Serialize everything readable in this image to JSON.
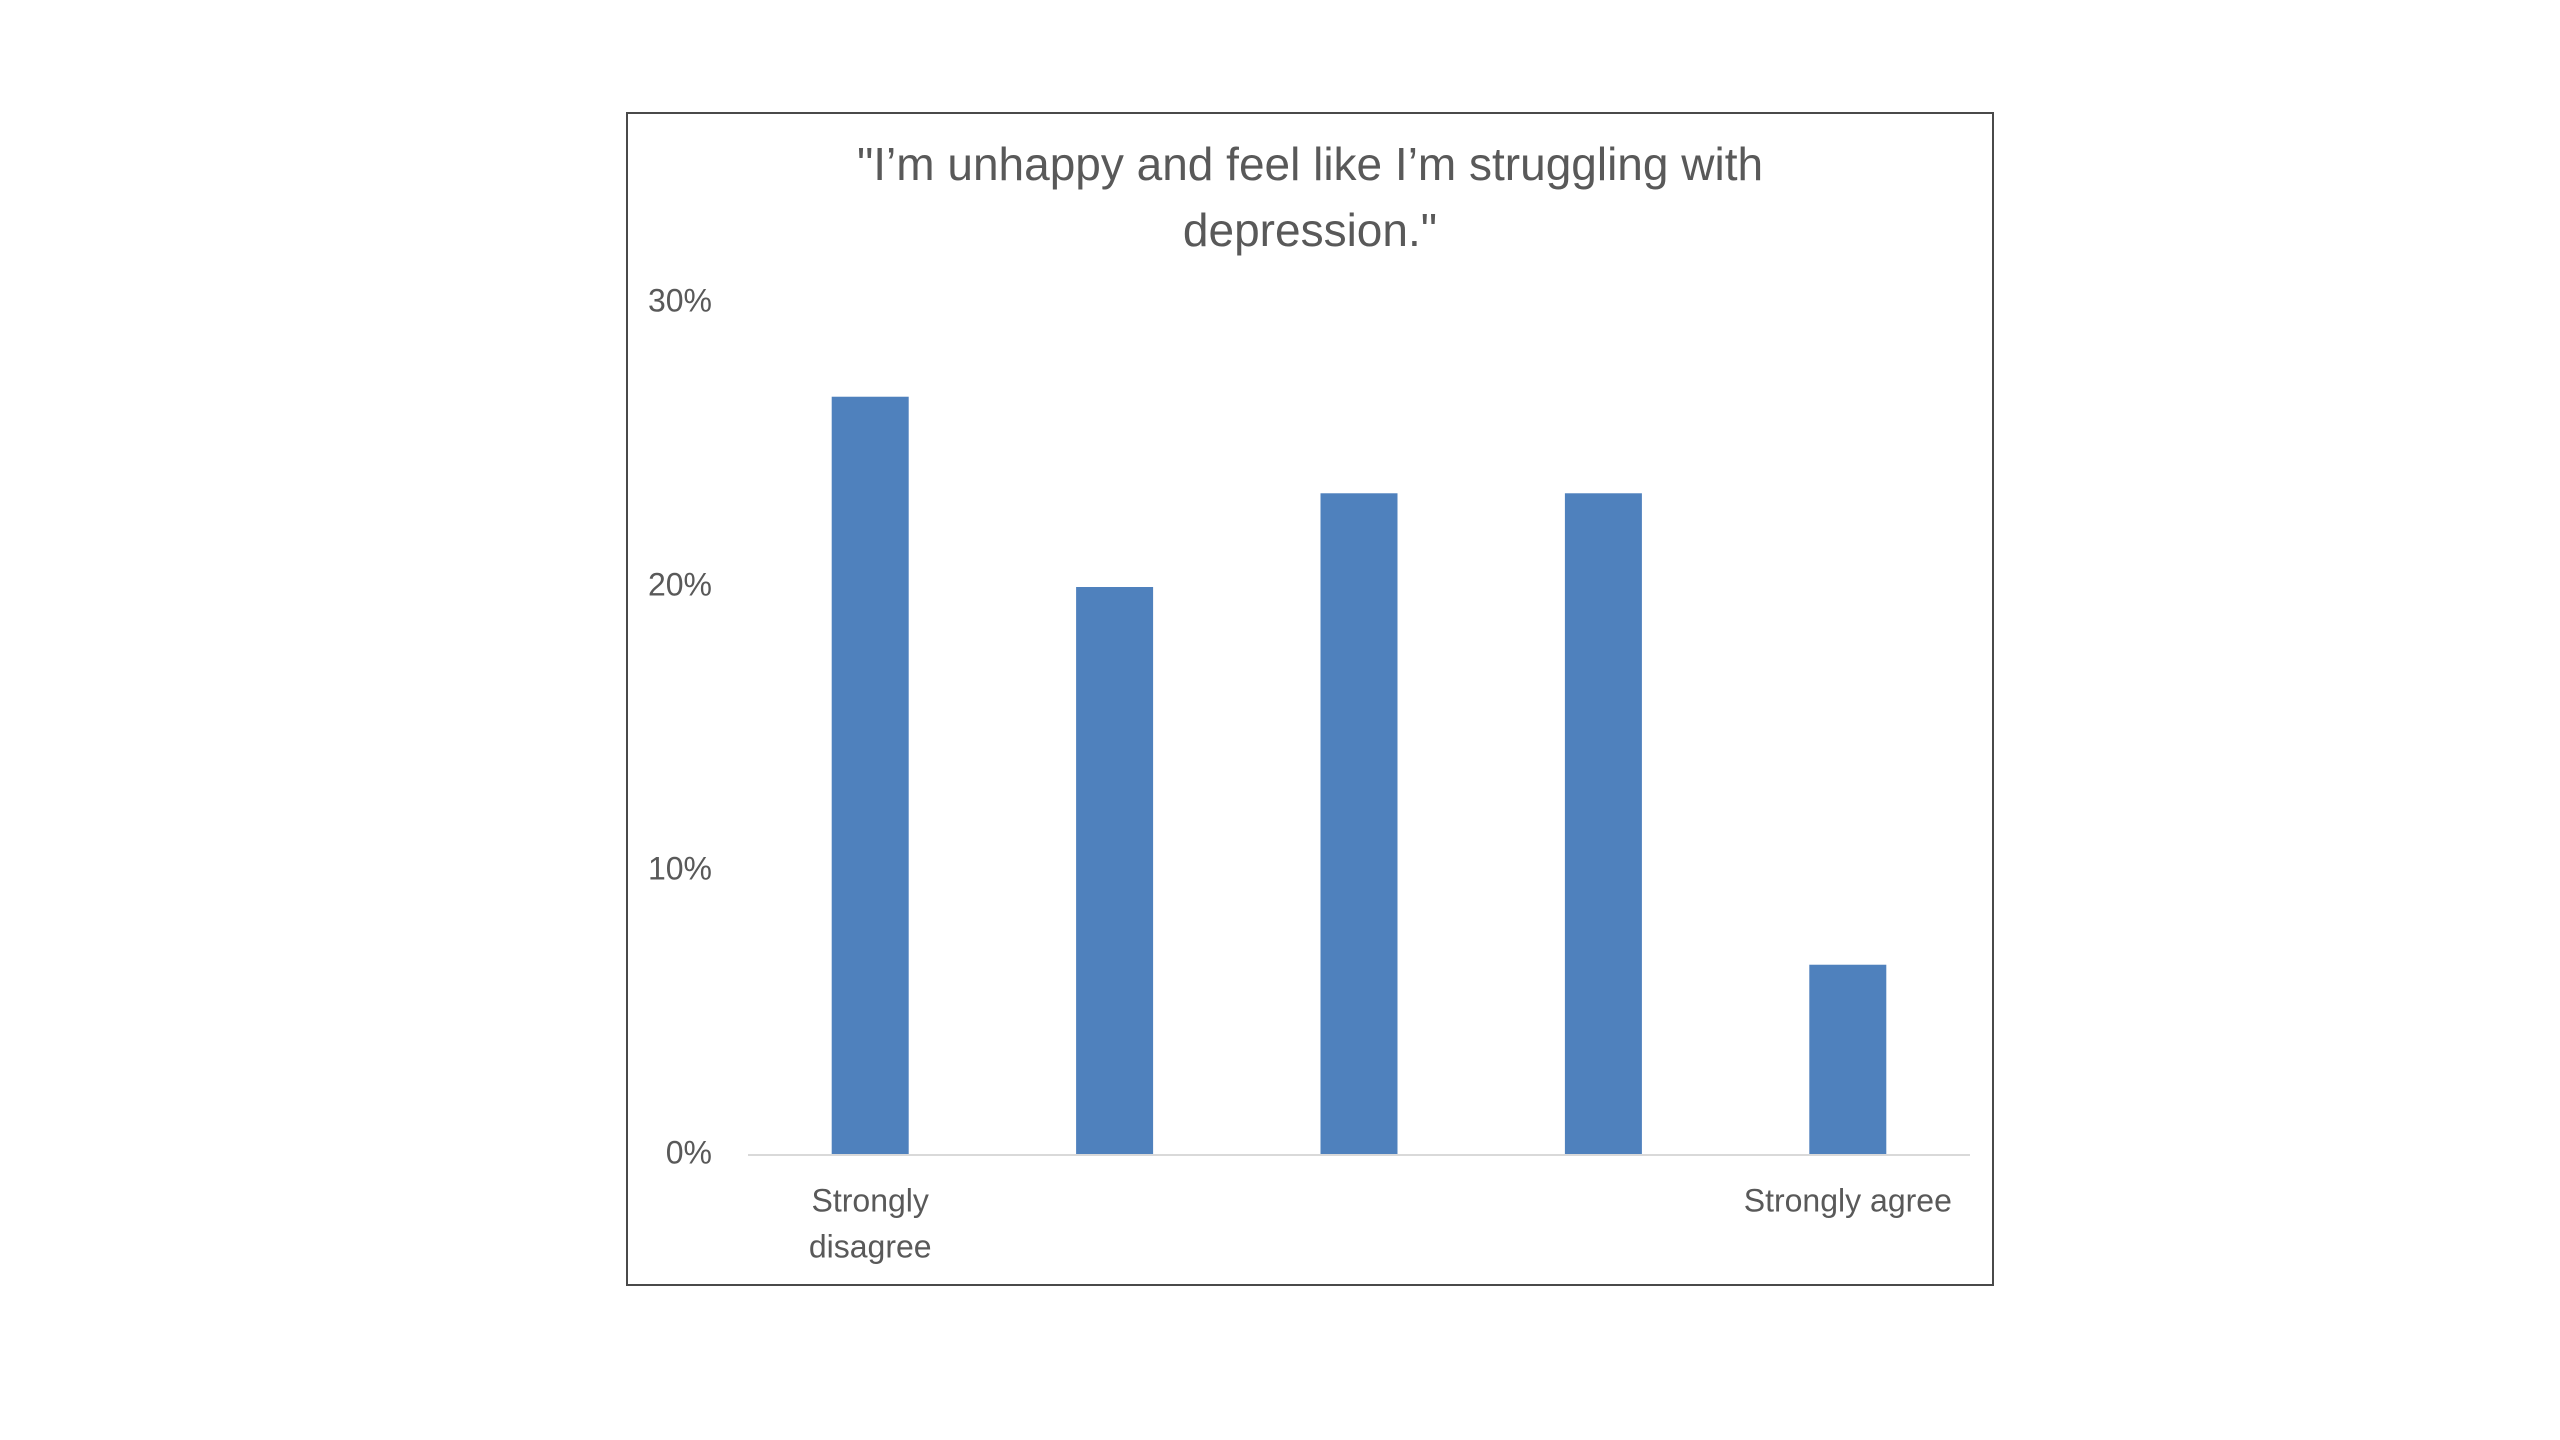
{
  "chart_data": {
    "type": "bar",
    "title": "\"I’m unhappy and feel like I’m struggling with depression.\"",
    "title_lines": [
      "\"I’m unhappy and feel like I’m struggling with",
      "depression.\""
    ],
    "categories": [
      [
        "Strongly",
        "disagree"
      ],
      [],
      [],
      [],
      [
        "Strongly agree"
      ]
    ],
    "values": [
      26.7,
      20.0,
      23.3,
      23.3,
      6.7
    ],
    "value_unit": "%",
    "ylim": [
      0,
      30
    ],
    "yticks": [
      0,
      10,
      20,
      30
    ],
    "ytick_labels": [
      "0%",
      "10%",
      "20%",
      "30%"
    ],
    "grid": false,
    "legend": "none",
    "bar_color": "#4f81bd",
    "axis_color": "#d9d9d9",
    "text_color": "#595959"
  }
}
